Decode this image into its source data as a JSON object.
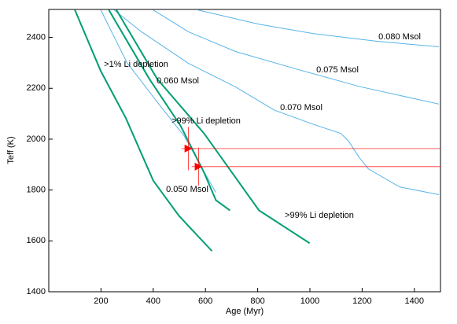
{
  "chart_data": {
    "type": "line",
    "xlabel": "Age (Myr)",
    "ylabel": "Teff (K)",
    "xlim": [
      0,
      1500
    ],
    "ylim": [
      1400,
      2510
    ],
    "xticks": [
      200,
      400,
      600,
      800,
      1000,
      1200,
      1400
    ],
    "yticks": [
      1400,
      1600,
      1800,
      2000,
      2200,
      2400
    ],
    "series": [
      {
        "color": "#56b4e9",
        "x": [
          571,
          804,
          1014,
          1254,
          1494
        ],
        "y": [
          2508,
          2452,
          2415,
          2385,
          2363
        ]
      },
      {
        "color": "#56b4e9",
        "x": [
          400,
          535,
          714,
          954,
          1193,
          1494
        ],
        "y": [
          2508,
          2422,
          2345,
          2274,
          2206,
          2138
        ]
      },
      {
        "color": "#56b4e9",
        "x": [
          250,
          355,
          535,
          714,
          864,
          1014,
          1119,
          1149,
          1188,
          1224,
          1344,
          1494
        ],
        "y": [
          2508,
          2422,
          2298,
          2206,
          2114,
          2058,
          2022,
          1991,
          1929,
          1883,
          1812,
          1782
        ]
      },
      {
        "color": "#56b4e9",
        "x": [
          199,
          300,
          420,
          520,
          590,
          640
        ],
        "y": [
          2508,
          2300,
          2140,
          2010,
          1880,
          1790
        ]
      },
      {
        "color": "#009e73",
        "x": [
          100,
          199,
          295,
          400,
          499,
          625
        ],
        "y": [
          2508,
          2268,
          2083,
          1837,
          1698,
          1560
        ]
      },
      {
        "color": "#009e73",
        "x": [
          230,
          385,
          505,
          595,
          640,
          694
        ],
        "y": [
          2508,
          2237,
          2052,
          1868,
          1760,
          1720
        ]
      },
      {
        "color": "#009e73",
        "x": [
          259,
          415,
          595,
          805,
          999
        ],
        "y": [
          2508,
          2237,
          2022,
          1720,
          1591
        ]
      }
    ],
    "points": {
      "color": "#ff0000",
      "x": [
        535,
        574
      ],
      "y": [
        1963,
        1892
      ],
      "xerr": [
        27,
        27
      ],
      "yerr": [
        85,
        75
      ]
    },
    "annotations": [
      "0.080 Msol",
      "0.075 Msol",
      "0.070 Msol",
      "0.060 Msol",
      ">1% Li depletion",
      ">99% Li depletion",
      "0.050 Msol",
      ">99% Li depletion"
    ]
  }
}
